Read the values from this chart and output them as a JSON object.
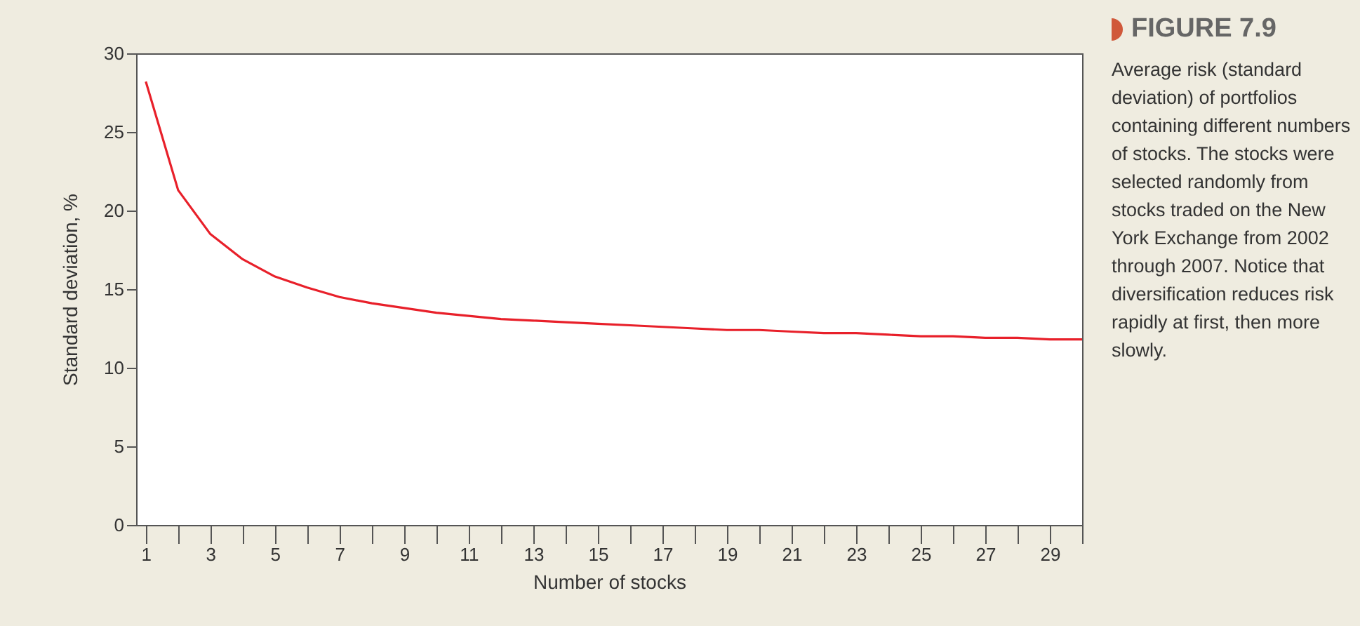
{
  "chart_data": {
    "type": "line",
    "title": "FIGURE 7.9",
    "subtitle": "Average risk (standard deviation) of portfolios containing different numbers of stocks. The stocks were selected randomly from stocks traded on the New York Exchange from 2002 through 2007. Notice that diversification reduces risk rapidly at first, then more slowly.",
    "xlabel": "Number of stocks",
    "ylabel": "Standard deviation, %",
    "x": [
      1,
      2,
      3,
      4,
      5,
      6,
      7,
      8,
      9,
      10,
      11,
      12,
      13,
      14,
      15,
      16,
      17,
      18,
      19,
      20,
      21,
      22,
      23,
      24,
      25,
      26,
      27,
      28,
      29,
      30
    ],
    "series": [
      {
        "color": "#e8202a",
        "values": [
          28.2,
          21.3,
          18.5,
          16.9,
          15.8,
          15.1,
          14.5,
          14.1,
          13.8,
          13.5,
          13.3,
          13.1,
          13.0,
          12.9,
          12.8,
          12.7,
          12.6,
          12.5,
          12.4,
          12.4,
          12.3,
          12.2,
          12.2,
          12.1,
          12.0,
          12.0,
          11.9,
          11.9,
          11.8,
          11.8
        ]
      }
    ],
    "xlim": [
      0.7,
      30
    ],
    "ylim": [
      0,
      30
    ],
    "xticks": [
      1,
      {
        "value": 2,
        "label": null
      },
      3,
      {
        "value": 4,
        "label": null
      },
      5,
      {
        "value": 6,
        "label": null
      },
      7,
      {
        "value": 8,
        "label": null
      },
      9,
      {
        "value": 10,
        "label": null
      },
      11,
      {
        "value": 12,
        "label": null
      },
      13,
      {
        "value": 14,
        "label": null
      },
      15,
      {
        "value": 16,
        "label": null
      },
      17,
      {
        "value": 18,
        "label": null
      },
      19,
      {
        "value": 20,
        "label": null
      },
      21,
      {
        "value": 22,
        "label": null
      },
      23,
      {
        "value": 24,
        "label": null
      },
      25,
      {
        "value": 26,
        "label": null
      },
      27,
      {
        "value": 28,
        "label": null
      },
      29,
      {
        "value": 30,
        "label": null
      }
    ],
    "yticks": [
      0,
      5,
      10,
      15,
      20,
      25,
      30
    ],
    "grid": false,
    "legend": false,
    "marker": "none",
    "line_style": "solid"
  }
}
